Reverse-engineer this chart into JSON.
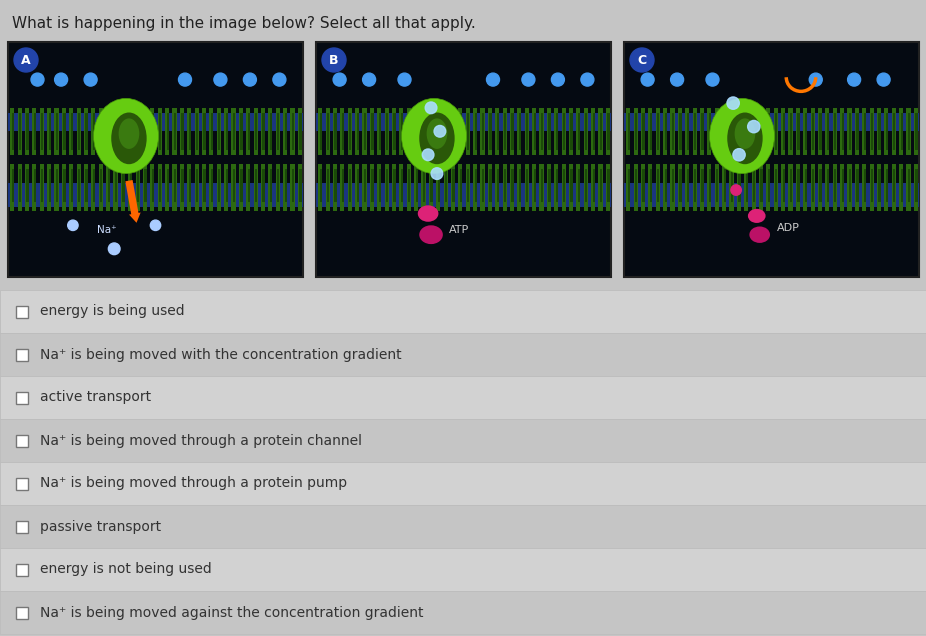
{
  "title": "What is happening in the image below? Select all that apply.",
  "title_fontsize": 11,
  "title_color": "#222222",
  "bg_color": "#c5c5c5",
  "options": [
    "energy is being used",
    "Na⁺ is being moved with the concentration gradient",
    "active transport",
    "Na⁺ is being moved through a protein channel",
    "Na⁺ is being moved through a protein pump",
    "passive transport",
    "energy is not being used",
    "Na⁺ is being moved against the concentration gradient"
  ],
  "panel_labels": [
    "A",
    "B",
    "C"
  ],
  "dot_blue": "#4499ee",
  "dot_orange": "#ff8800",
  "protein_green": "#66cc11",
  "protein_dark": "#2a5a08",
  "membrane_green": "#2d6a10",
  "membrane_dark_green": "#1a4008",
  "blue_band": "#1a2f6a",
  "dark_band": "#050c1a",
  "atp_pink": "#dd2277",
  "adp_pink": "#dd2277",
  "na_blue": "#aaccff",
  "option_text_color": "#333333",
  "option_fontsize": 10,
  "row_color_even": "#d2d2d2",
  "row_color_odd": "#c5c5c5"
}
